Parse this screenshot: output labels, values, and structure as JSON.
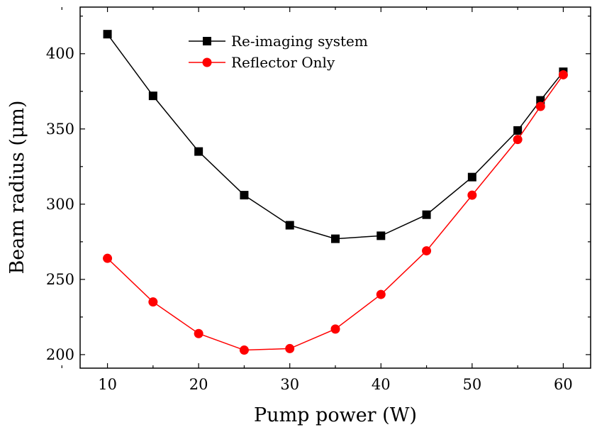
{
  "chart_data": {
    "type": "line",
    "title": "",
    "xlabel": "Pump power (W)",
    "ylabel": "Beam radius (μm)",
    "xlim": [
      7,
      63
    ],
    "ylim": [
      191,
      431
    ],
    "x_ticks": [
      10,
      20,
      30,
      40,
      50,
      60
    ],
    "y_ticks": [
      200,
      250,
      300,
      350,
      400
    ],
    "grid": false,
    "legend_position": "top-center",
    "series": [
      {
        "name": "Re-imaging system",
        "color": "#000000",
        "marker": "square",
        "x": [
          10,
          15,
          20,
          25,
          30,
          35,
          40,
          45,
          50,
          55,
          57.5,
          60
        ],
        "y": [
          413,
          372,
          335,
          306,
          286,
          277,
          279,
          293,
          318,
          349,
          369,
          388
        ]
      },
      {
        "name": "Reflector Only",
        "color": "#ff0000",
        "marker": "circle",
        "x": [
          10,
          15,
          20,
          25,
          30,
          35,
          40,
          45,
          50,
          55,
          57.5,
          60
        ],
        "y": [
          264,
          235,
          214,
          203,
          204,
          217,
          240,
          269,
          306,
          343,
          365,
          386
        ]
      }
    ]
  }
}
